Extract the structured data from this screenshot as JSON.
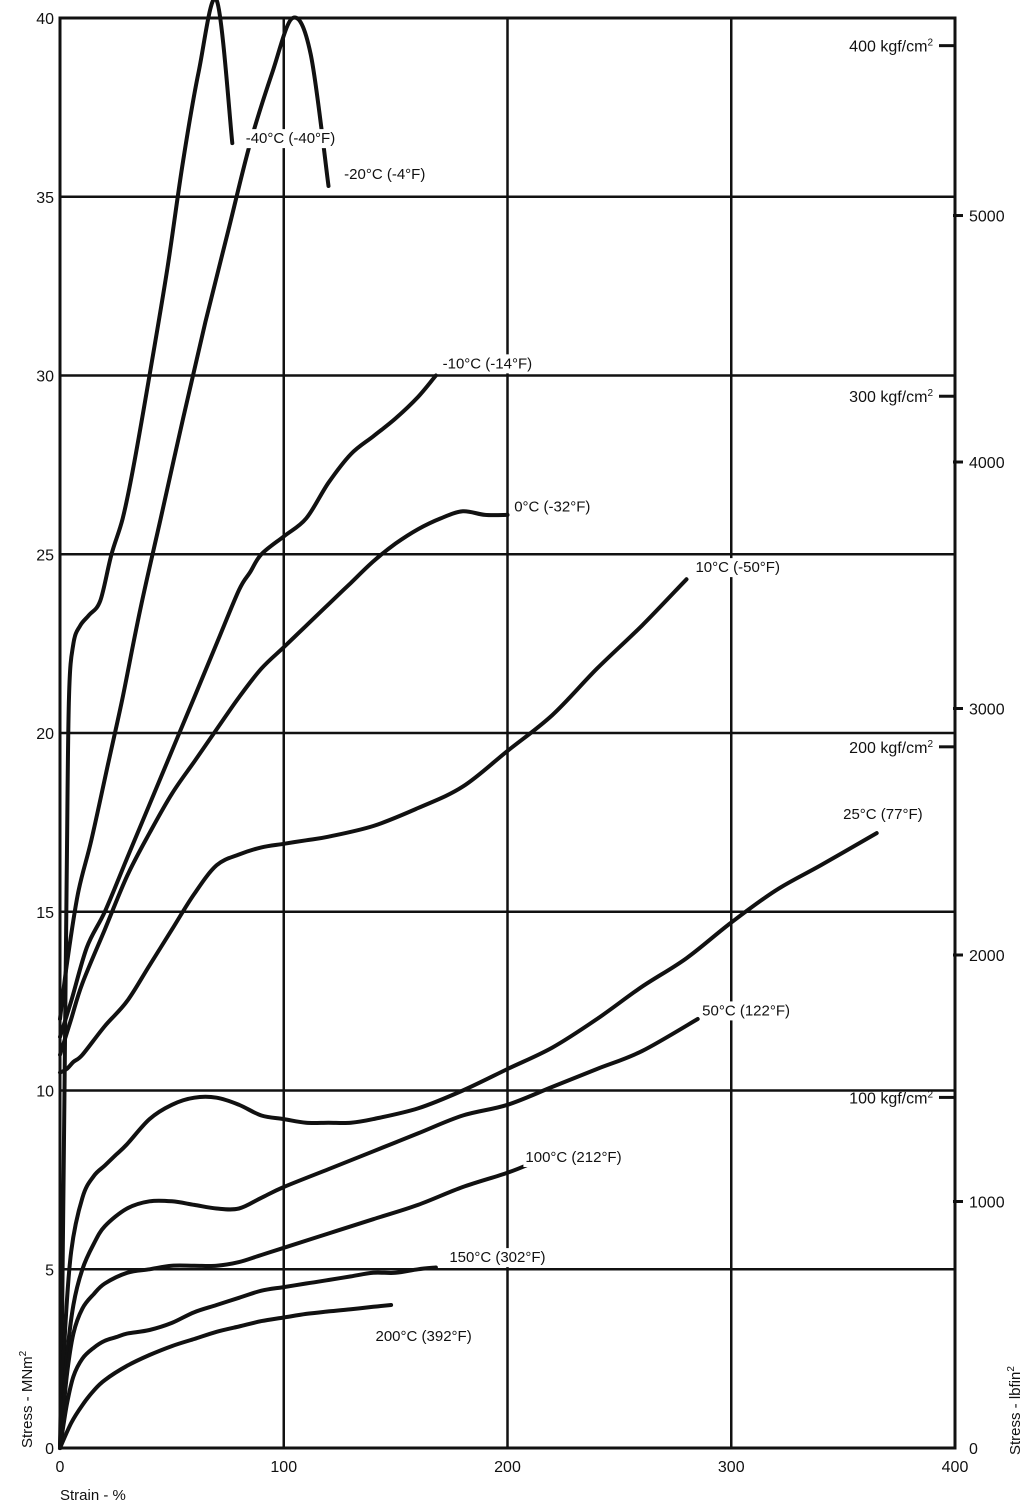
{
  "chart_data": {
    "type": "line",
    "xlabel": "Strain - %",
    "ylabel": "Stress - MNm",
    "ylabel_sup": "2",
    "y2label": "Stress - lbfin",
    "y2label_sup": "2",
    "xlim": [
      0,
      400
    ],
    "ylim": [
      0,
      40
    ],
    "grid": true,
    "x_ticks": [
      0,
      100,
      200,
      300,
      400
    ],
    "y_ticks": [
      0,
      5,
      10,
      15,
      20,
      25,
      30,
      35,
      40
    ],
    "right_axis_lbf": {
      "ticks": [
        0,
        1000,
        2000,
        3000,
        4000,
        5000
      ],
      "unit_factor_mpa": 0.006895
    },
    "right_axis_kgf": {
      "unit": "kgf/cm",
      "unit_sup": "2",
      "ticks": [
        100,
        200,
        300,
        400
      ],
      "unit_factor_mpa": 0.0980665
    },
    "series": [
      {
        "name": "-40°C (-40°F)",
        "x": [
          0,
          1,
          2,
          3,
          4,
          6,
          9,
          13,
          18,
          23,
          28,
          33,
          40,
          48,
          55,
          62,
          70,
          77
        ],
        "y": [
          0,
          4,
          10,
          16,
          21,
          22.5,
          23,
          23.3,
          23.7,
          25,
          26,
          27.5,
          30,
          33,
          36,
          38.5,
          40.5,
          36.5
        ]
      },
      {
        "name": "-20°C (-4°F)",
        "x": [
          0,
          3,
          8,
          14,
          21,
          28,
          36,
          45,
          55,
          65,
          75,
          85,
          95,
          104,
          112,
          120
        ],
        "y": [
          12,
          13.5,
          15.5,
          17,
          19,
          21,
          23.5,
          26,
          28.8,
          31.5,
          34,
          36.5,
          38.5,
          40,
          39,
          35.3
        ]
      },
      {
        "name": "-10°C (-14°F)",
        "x": [
          0,
          5,
          12,
          20,
          30,
          40,
          50,
          60,
          70,
          80,
          85,
          90,
          100,
          110,
          120,
          130,
          140,
          150,
          160,
          168
        ],
        "y": [
          11.5,
          12.5,
          14,
          15,
          16.5,
          18,
          19.5,
          21,
          22.5,
          24,
          24.5,
          25,
          25.5,
          26,
          27,
          27.8,
          28.3,
          28.8,
          29.4,
          30
        ]
      },
      {
        "name": "0°C (-32°F)",
        "x": [
          0,
          5,
          10,
          20,
          30,
          40,
          50,
          60,
          70,
          80,
          90,
          100,
          110,
          120,
          130,
          140,
          150,
          160,
          170,
          180,
          190,
          200
        ],
        "y": [
          11,
          12,
          13,
          14.5,
          16,
          17.2,
          18.3,
          19.2,
          20.1,
          21,
          21.8,
          22.4,
          23,
          23.6,
          24.2,
          24.8,
          25.3,
          25.7,
          26,
          26.2,
          26.1,
          26.1
        ]
      },
      {
        "name": "10°C (-50°F)",
        "x": [
          0,
          3,
          6,
          10,
          20,
          30,
          40,
          50,
          60,
          70,
          80,
          90,
          100,
          110,
          120,
          140,
          160,
          180,
          200,
          220,
          240,
          260,
          280
        ],
        "y": [
          10.5,
          10.6,
          10.8,
          11,
          11.8,
          12.5,
          13.5,
          14.5,
          15.5,
          16.3,
          16.6,
          16.8,
          16.9,
          17,
          17.1,
          17.4,
          17.9,
          18.5,
          19.5,
          20.5,
          21.8,
          23,
          24.3
        ]
      },
      {
        "name": "25°C (77°F)",
        "x": [
          0,
          2,
          5,
          10,
          15,
          20,
          25,
          30,
          40,
          50,
          60,
          70,
          80,
          90,
          100,
          110,
          120,
          130,
          140,
          160,
          180,
          200,
          220,
          240,
          260,
          280,
          300,
          320,
          340,
          365
        ],
        "y": [
          0,
          3,
          5.5,
          7,
          7.6,
          7.9,
          8.2,
          8.5,
          9.2,
          9.6,
          9.8,
          9.8,
          9.6,
          9.3,
          9.2,
          9.1,
          9.1,
          9.1,
          9.2,
          9.5,
          10,
          10.6,
          11.2,
          12,
          12.9,
          13.7,
          14.7,
          15.6,
          16.3,
          17.2
        ]
      },
      {
        "name": "50°C (122°F)",
        "x": [
          0,
          3,
          6,
          10,
          15,
          20,
          30,
          40,
          50,
          60,
          70,
          80,
          90,
          100,
          120,
          140,
          160,
          180,
          200,
          220,
          240,
          260,
          285
        ],
        "y": [
          0,
          2.5,
          4,
          5,
          5.7,
          6.2,
          6.7,
          6.9,
          6.9,
          6.8,
          6.7,
          6.7,
          7,
          7.3,
          7.8,
          8.3,
          8.8,
          9.3,
          9.6,
          10.1,
          10.6,
          11.1,
          12
        ]
      },
      {
        "name": "100°C (212°F)",
        "x": [
          0,
          3,
          6,
          10,
          15,
          20,
          30,
          40,
          50,
          60,
          70,
          80,
          90,
          100,
          120,
          140,
          160,
          180,
          200,
          212
        ],
        "y": [
          0,
          2,
          3.2,
          3.9,
          4.3,
          4.6,
          4.9,
          5,
          5.1,
          5.1,
          5.1,
          5.2,
          5.4,
          5.6,
          6,
          6.4,
          6.8,
          7.3,
          7.7,
          8
        ]
      },
      {
        "name": "150°C (302°F)",
        "x": [
          0,
          3,
          6,
          10,
          15,
          20,
          25,
          30,
          40,
          50,
          60,
          70,
          80,
          90,
          100,
          110,
          120,
          130,
          140,
          150,
          160,
          168
        ],
        "y": [
          0,
          1.2,
          2,
          2.5,
          2.8,
          3,
          3.1,
          3.2,
          3.3,
          3.5,
          3.8,
          4,
          4.2,
          4.4,
          4.5,
          4.6,
          4.7,
          4.8,
          4.9,
          4.9,
          5,
          5.05
        ]
      },
      {
        "name": "200°C (392°F)",
        "x": [
          0,
          5,
          10,
          15,
          20,
          30,
          40,
          50,
          60,
          70,
          80,
          90,
          100,
          110,
          120,
          130,
          140,
          148
        ],
        "y": [
          0,
          0.7,
          1.2,
          1.6,
          1.9,
          2.3,
          2.6,
          2.85,
          3.05,
          3.25,
          3.4,
          3.55,
          3.65,
          3.75,
          3.82,
          3.88,
          3.95,
          4
        ]
      }
    ],
    "annotations": [
      {
        "text": "-40°C (-40°F)",
        "x": 83,
        "y": 36.5,
        "anchor": "start"
      },
      {
        "text": "-20°C (-4°F)",
        "x": 127,
        "y": 35.5,
        "anchor": "start"
      },
      {
        "text": "-10°C (-14°F)",
        "x": 171,
        "y": 30.2,
        "anchor": "start"
      },
      {
        "text": "0°C (-32°F)",
        "x": 203,
        "y": 26.2,
        "anchor": "start"
      },
      {
        "text": "10°C (-50°F)",
        "x": 284,
        "y": 24.5,
        "anchor": "start"
      },
      {
        "text": "25°C (77°F)",
        "x": 350,
        "y": 17.6,
        "anchor": "start"
      },
      {
        "text": "50°C (122°F)",
        "x": 287,
        "y": 12.1,
        "anchor": "start"
      },
      {
        "text": "100°C (212°F)",
        "x": 208,
        "y": 8.0,
        "anchor": "start"
      },
      {
        "text": "150°C (302°F)",
        "x": 174,
        "y": 5.2,
        "anchor": "start"
      },
      {
        "text": "200°C (392°F)",
        "x": 141,
        "y": 3.0,
        "anchor": "start"
      }
    ]
  }
}
